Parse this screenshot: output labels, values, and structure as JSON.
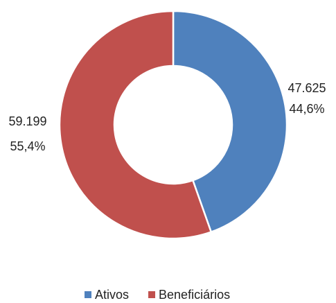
{
  "chart_data": {
    "type": "donut",
    "categories": [
      "Ativos",
      "Beneficiários"
    ],
    "values": [
      47625,
      59199
    ],
    "value_labels": [
      "47.625",
      "59.199"
    ],
    "percent_labels": [
      "44,6%",
      "55,4%"
    ],
    "colors": [
      "#4f81bd",
      "#c0504d"
    ],
    "legend": "bottom"
  }
}
